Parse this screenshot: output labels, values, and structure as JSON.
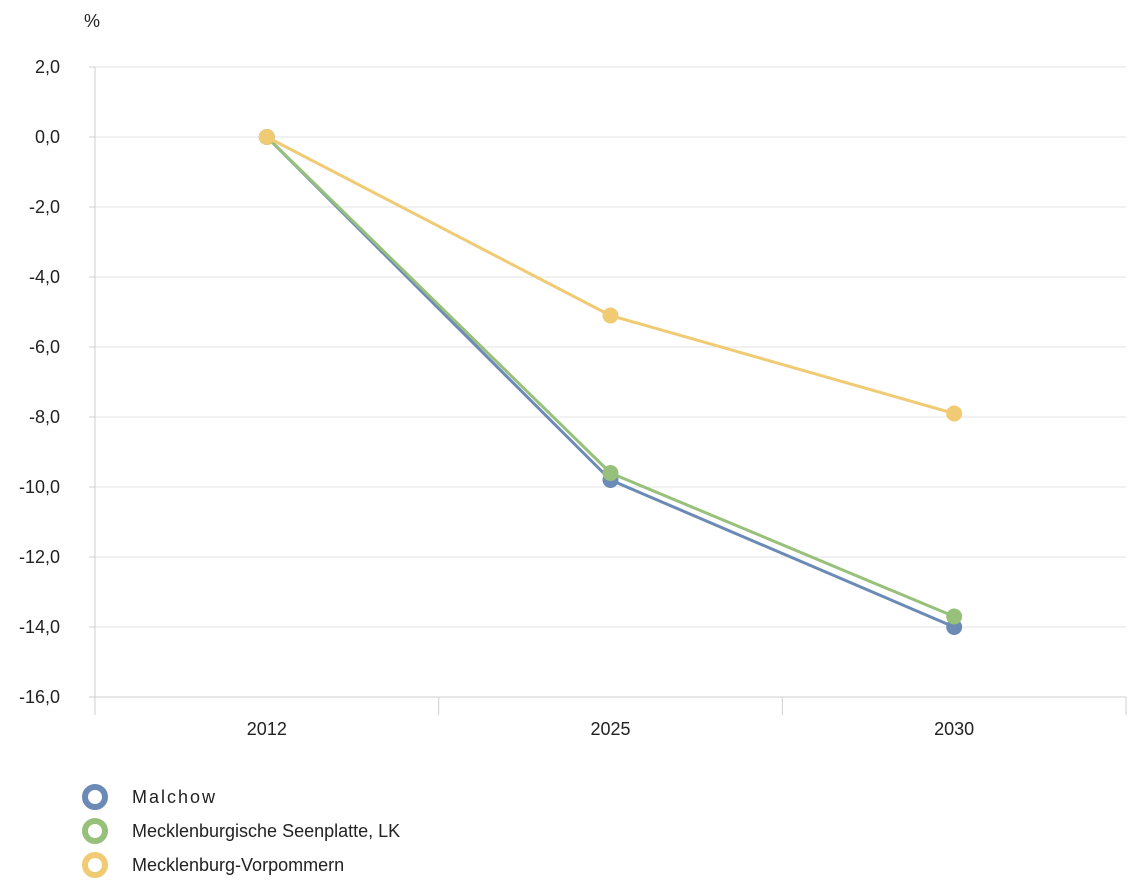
{
  "chart_data": {
    "type": "line",
    "unit_label": "%",
    "categories": [
      "2012",
      "2025",
      "2030"
    ],
    "ylim": [
      -16,
      2
    ],
    "y_ticks": [
      2,
      0,
      -2,
      -4,
      -6,
      -8,
      -10,
      -12,
      -14,
      -16
    ],
    "y_tick_labels": [
      "2,0",
      "0,0",
      "-2,0",
      "-4,0",
      "-6,0",
      "-8,0",
      "-10,0",
      "-12,0",
      "-14,0",
      "-16,0"
    ],
    "grid": true,
    "legend_placement": "bottom-left",
    "series": [
      {
        "name": "Malchow",
        "values": [
          0.0,
          -9.8,
          -14.0
        ],
        "color": "#6b8ab5"
      },
      {
        "name": "Mecklenburgische Seenplatte, LK",
        "values": [
          0.0,
          -9.6,
          -13.7
        ],
        "color": "#97c17a"
      },
      {
        "name": "Mecklenburg-Vorpommern",
        "values": [
          0.0,
          -5.1,
          -7.9
        ],
        "color": "#f0cb74"
      }
    ]
  }
}
